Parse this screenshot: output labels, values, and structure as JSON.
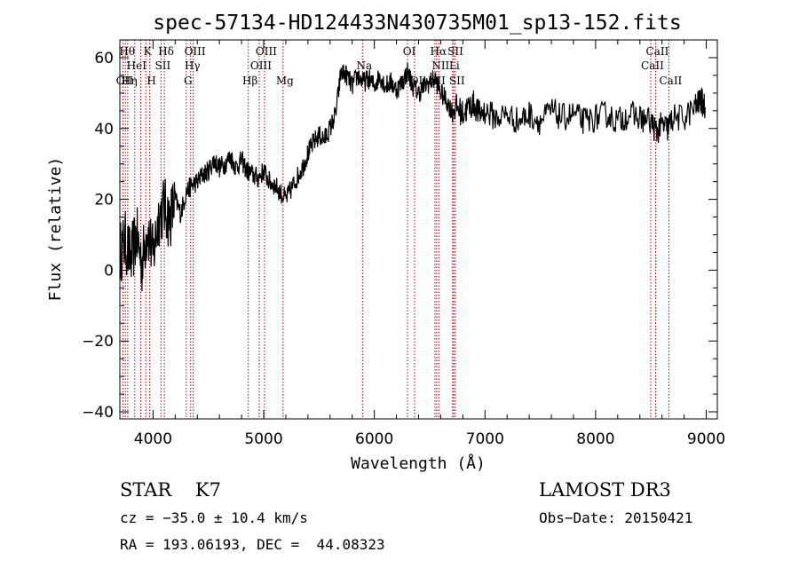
{
  "chart_data": {
    "type": "line",
    "title": "spec-57134-HD124433N430735M01_sp13-152.fits",
    "xlabel": "Wavelength (Å)",
    "ylabel": "Flux (relative)",
    "xlim": [
      3700,
      9100
    ],
    "ylim": [
      -42,
      65
    ],
    "xticks": [
      4000,
      5000,
      6000,
      7000,
      8000,
      9000
    ],
    "xtick_labels": [
      "4000",
      "5000",
      "6000",
      "7000",
      "8000",
      "9000"
    ],
    "yticks": [
      -40,
      -20,
      0,
      20,
      40,
      60
    ],
    "ytick_labels": [
      "−40",
      "−20",
      "0",
      "20",
      "40",
      "60"
    ],
    "series": [
      {
        "values_x": [
          3700,
          3750,
          3800,
          3850,
          3900,
          3950,
          4000,
          4050,
          4100,
          4150,
          4200,
          4250,
          4300,
          4350,
          4400,
          4450,
          4500,
          4550,
          4600,
          4650,
          4700,
          4750,
          4800,
          4850,
          4900,
          4950,
          5000,
          5050,
          5100,
          5150,
          5200,
          5250,
          5300,
          5350,
          5400,
          5450,
          5500,
          5550,
          5600,
          5650,
          5700,
          5750,
          5800,
          5850,
          5900,
          5950,
          6000,
          6050,
          6100,
          6150,
          6200,
          6250,
          6300,
          6350,
          6400,
          6450,
          6500,
          6550,
          6600,
          6650,
          6700,
          6750,
          6800,
          6850,
          6900,
          6950,
          7000,
          7100,
          7200,
          7300,
          7400,
          7500,
          7600,
          7700,
          7800,
          7900,
          8000,
          8100,
          8200,
          8300,
          8400,
          8500,
          8550,
          8600,
          8650,
          8700,
          8800,
          8900,
          8950,
          8990
        ],
        "values_y": [
          5,
          8,
          3,
          10,
          2,
          12,
          4,
          15,
          18,
          14,
          20,
          16,
          22,
          24,
          25,
          27,
          28,
          31,
          29,
          30,
          32,
          29,
          31,
          28,
          27,
          26,
          28,
          25,
          24,
          22,
          20,
          23,
          26,
          29,
          33,
          36,
          38,
          37,
          40,
          44,
          56,
          55,
          52,
          55,
          53,
          54,
          52,
          55,
          52,
          53,
          51,
          53,
          56,
          52,
          50,
          52,
          53,
          54,
          50,
          48,
          45,
          46,
          44,
          46,
          47,
          44,
          45,
          43,
          44,
          42,
          44,
          42,
          45,
          43,
          44,
          42,
          43,
          44,
          42,
          44,
          43,
          42,
          39,
          41,
          40,
          43,
          43,
          46,
          48,
          46
        ]
      }
    ],
    "lines": [
      {
        "x": 3727,
        "label": "OII",
        "row": 2
      },
      {
        "x": 3750,
        "label": "Hθ",
        "row": 0
      },
      {
        "x": 3771,
        "label": "Hη",
        "row": 2
      },
      {
        "x": 3835,
        "label": "HeI",
        "row": 1
      },
      {
        "x": 3889,
        "label": "",
        "row": 1
      },
      {
        "x": 3934,
        "label": "K",
        "row": 0
      },
      {
        "x": 3970,
        "label": "H",
        "row": 2
      },
      {
        "x": 4072,
        "label": "SII",
        "row": 1
      },
      {
        "x": 4102,
        "label": "Hδ",
        "row": 0
      },
      {
        "x": 4300,
        "label": "G",
        "row": 2
      },
      {
        "x": 4340,
        "label": "Hγ",
        "row": 1
      },
      {
        "x": 4363,
        "label": "OIII",
        "row": 0
      },
      {
        "x": 4861,
        "label": "Hβ",
        "row": 2
      },
      {
        "x": 4959,
        "label": "OIII",
        "row": 1
      },
      {
        "x": 5007,
        "label": "OIII",
        "row": 0
      },
      {
        "x": 5175,
        "label": "Mg",
        "row": 2
      },
      {
        "x": 5893,
        "label": "Na",
        "row": 1
      },
      {
        "x": 6300,
        "label": "OI",
        "row": 0
      },
      {
        "x": 6364,
        "label": "OI",
        "row": 2
      },
      {
        "x": 6548,
        "label": "NII",
        "row": 2
      },
      {
        "x": 6563,
        "label": "Hα",
        "row": 0
      },
      {
        "x": 6583,
        "label": "NII",
        "row": 1
      },
      {
        "x": 6707,
        "label": "Li",
        "row": 1
      },
      {
        "x": 6717,
        "label": "SII",
        "row": 0
      },
      {
        "x": 6731,
        "label": "SII",
        "row": 2
      },
      {
        "x": 8498,
        "label": "CaII",
        "row": 1
      },
      {
        "x": 8542,
        "label": "CaII",
        "row": 0
      },
      {
        "x": 8662,
        "label": "CaII",
        "row": 2
      }
    ]
  },
  "info": {
    "class_text": "STAR    K7",
    "survey": "LAMOST DR3",
    "cz_text": "cz = −35.0 ± 10.4 km/s",
    "obs_date": "Obs−Date: 20150421",
    "coords": "RA = 193.06193, DEC =  44.08323"
  }
}
